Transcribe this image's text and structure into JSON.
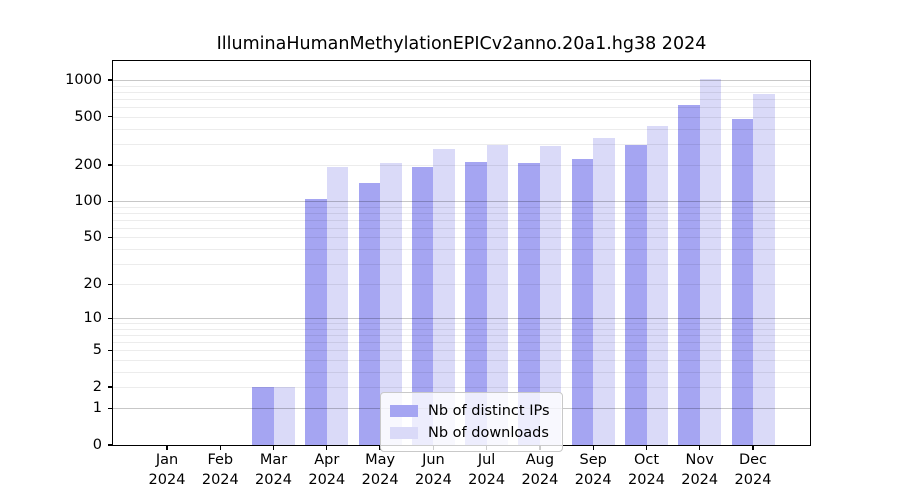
{
  "chart_data": {
    "type": "bar",
    "title": "IlluminaHumanMethylationEPICv2anno.20a1.hg38 2024",
    "x_categories": [
      "Jan",
      "Feb",
      "Mar",
      "Apr",
      "May",
      "Jun",
      "Jul",
      "Aug",
      "Sep",
      "Oct",
      "Nov",
      "Dec"
    ],
    "x_year": "2024",
    "series": [
      {
        "name": "Nb of distinct IPs",
        "color": "#a5a5f2",
        "values": [
          0,
          0,
          2,
          104,
          141,
          192,
          212,
          209,
          226,
          290,
          620,
          475
        ]
      },
      {
        "name": "Nb of downloads",
        "color": "#dadaf8",
        "values": [
          0,
          0,
          2,
          192,
          207,
          270,
          291,
          287,
          331,
          423,
          1025,
          770
        ]
      }
    ],
    "y_scale": "log1p",
    "y_tick_values": [
      0,
      1,
      2,
      5,
      10,
      20,
      50,
      100,
      200,
      500,
      1000
    ],
    "y_tick_labels": [
      "0",
      "1",
      "2",
      "5",
      "10",
      "20",
      "50",
      "100",
      "200",
      "500",
      "1000"
    ],
    "ylim": [
      0,
      1437
    ],
    "grid": "horizontal log minor and major gridlines, drawn over bars",
    "legend_position": "lower center, inside plot",
    "background_color": "#ffffff",
    "text_color": "#000000"
  }
}
